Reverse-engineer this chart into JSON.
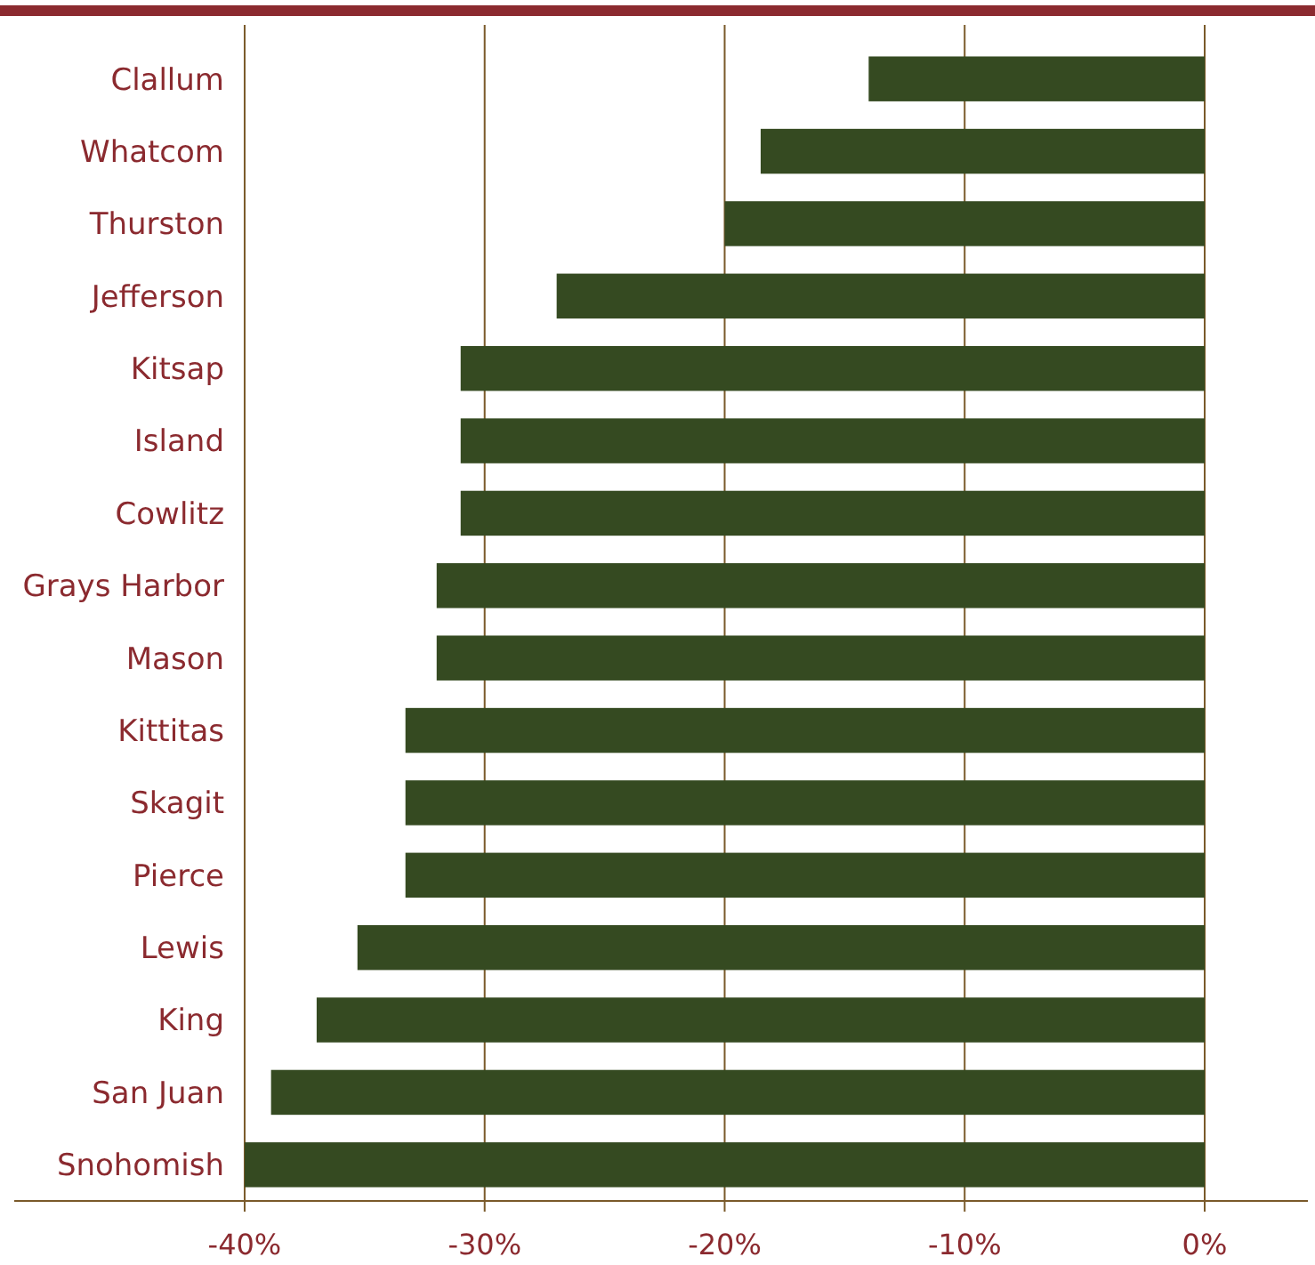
{
  "chart_data": {
    "type": "bar",
    "orientation": "horizontal",
    "categories": [
      "Clallum",
      "Whatcom",
      "Thurston",
      "Jefferson",
      "Kitsap",
      "Island",
      "Cowlitz",
      "Grays Harbor",
      "Mason",
      "Kittitas",
      "Skagit",
      "Pierce",
      "Lewis",
      "King",
      "San Juan",
      "Snohomish"
    ],
    "values": [
      -14,
      -18.5,
      -20,
      -27,
      -31,
      -31,
      -31,
      -32,
      -32,
      -33.3,
      -33.3,
      -33.3,
      -35.3,
      -37,
      -38.9,
      -40
    ],
    "color": "#354a21",
    "xlim": [
      -49.6,
      4.3
    ],
    "xticks": [
      {
        "value": -40,
        "label": "-40%"
      },
      {
        "value": -30,
        "label": "-30%"
      },
      {
        "value": -20,
        "label": "-20%"
      },
      {
        "value": -10,
        "label": "-10%"
      },
      {
        "value": 0,
        "label": "0%"
      }
    ],
    "grid": "x"
  }
}
